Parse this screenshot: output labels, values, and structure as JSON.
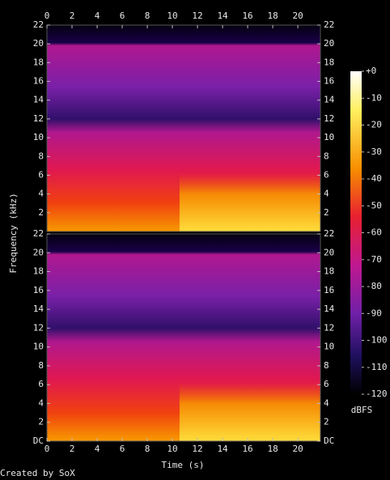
{
  "chart_data": [
    {
      "type": "spectrogram",
      "ylabel": "Frequency (kHz)",
      "xlim": [
        0,
        21.8
      ],
      "xticks": [
        0,
        2,
        4,
        6,
        8,
        10,
        12,
        14,
        16,
        18,
        20
      ],
      "ylim": [
        0,
        22
      ],
      "yticks": [
        2,
        4,
        6,
        8,
        10,
        12,
        14,
        16,
        18,
        20,
        22
      ]
    },
    {
      "type": "spectrogram",
      "xlabel": "Time (s)",
      "xlim": [
        0,
        21.8
      ],
      "xticks": [
        0,
        2,
        4,
        6,
        8,
        10,
        12,
        14,
        16,
        18,
        20
      ],
      "ylim": [
        0,
        22
      ],
      "yticks": [
        {
          "value": 0,
          "label": "DC"
        },
        2,
        4,
        6,
        8,
        10,
        12,
        14,
        16,
        18,
        20,
        22
      ]
    }
  ],
  "colorbar": {
    "label": "dBFS",
    "lim": [
      -120,
      0
    ],
    "ticks": [
      {
        "value": 0,
        "label": "+0"
      },
      -10,
      -20,
      -30,
      -40,
      -50,
      -60,
      -70,
      -80,
      -90,
      -100,
      -110,
      -120
    ]
  },
  "footer": "Created by SoX"
}
